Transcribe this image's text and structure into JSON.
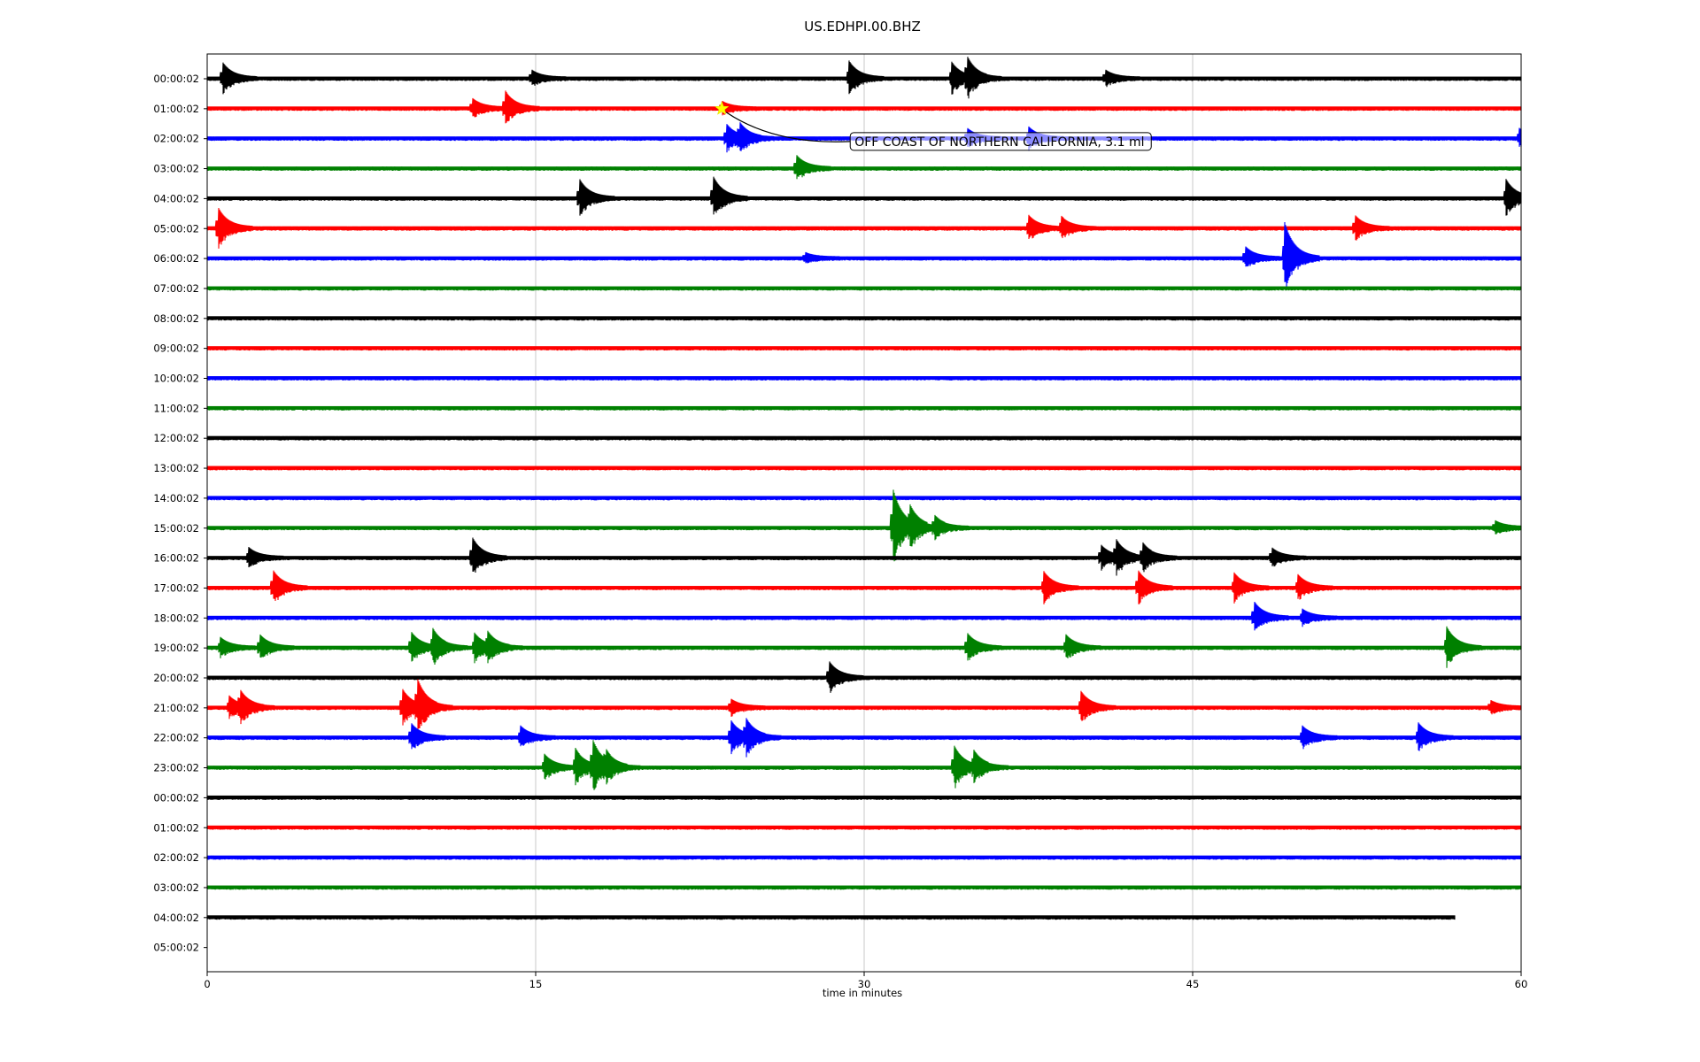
{
  "chart_data": {
    "type": "line",
    "title": "US.EDHPI.00.BHZ",
    "xlabel": "time in minutes",
    "ylabel": "",
    "xlim": [
      0,
      60
    ],
    "x_ticks": [
      0,
      15,
      30,
      45,
      60
    ],
    "x_tick_labels": [
      "0",
      "15",
      "30",
      "45",
      "60"
    ],
    "grid": "vertical",
    "row_labels": [
      "00:00:02",
      "01:00:02",
      "02:00:02",
      "03:00:02",
      "04:00:02",
      "05:00:02",
      "06:00:02",
      "07:00:02",
      "08:00:02",
      "09:00:02",
      "10:00:02",
      "11:00:02",
      "12:00:02",
      "13:00:02",
      "14:00:02",
      "15:00:02",
      "16:00:02",
      "17:00:02",
      "18:00:02",
      "19:00:02",
      "20:00:02",
      "21:00:02",
      "22:00:02",
      "23:00:02",
      "00:00:02",
      "01:00:02",
      "02:00:02",
      "03:00:02",
      "04:00:02",
      "05:00:02"
    ],
    "color_cycle": [
      "#000000",
      "#ff0000",
      "#0000ff",
      "#008000"
    ],
    "traces": [
      {
        "row": 0,
        "end_min": 60,
        "bursts": [
          [
            0.7,
            1.0
          ],
          [
            14.8,
            0.5
          ],
          [
            29.3,
            1.1
          ],
          [
            34.0,
            1.0
          ],
          [
            34.7,
            1.2
          ],
          [
            41.0,
            0.5
          ]
        ]
      },
      {
        "row": 1,
        "end_min": 60,
        "bursts": [
          [
            12.1,
            0.6
          ],
          [
            13.6,
            1.1
          ],
          [
            23.5,
            0.4
          ]
        ]
      },
      {
        "row": 2,
        "end_min": 60,
        "bursts": [
          [
            23.7,
            0.9
          ],
          [
            24.3,
            0.8
          ],
          [
            34.7,
            0.6
          ],
          [
            37.5,
            0.7
          ],
          [
            59.9,
            0.6
          ]
        ]
      },
      {
        "row": 3,
        "end_min": 60,
        "bursts": [
          [
            26.9,
            0.8
          ]
        ]
      },
      {
        "row": 4,
        "end_min": 60,
        "bursts": [
          [
            17.0,
            1.2
          ],
          [
            23.1,
            1.4
          ],
          [
            59.3,
            1.2
          ]
        ]
      },
      {
        "row": 5,
        "end_min": 60,
        "bursts": [
          [
            0.5,
            1.3
          ],
          [
            37.5,
            0.8
          ],
          [
            39.0,
            0.7
          ],
          [
            52.4,
            0.8
          ]
        ]
      },
      {
        "row": 6,
        "end_min": 60,
        "bursts": [
          [
            47.4,
            0.7
          ],
          [
            49.2,
            2.3
          ],
          [
            27.3,
            0.3
          ]
        ]
      },
      {
        "row": 7,
        "end_min": 60,
        "bursts": []
      },
      {
        "row": 8,
        "end_min": 60,
        "bursts": []
      },
      {
        "row": 9,
        "end_min": 60,
        "bursts": []
      },
      {
        "row": 10,
        "end_min": 60,
        "bursts": []
      },
      {
        "row": 11,
        "end_min": 60,
        "bursts": []
      },
      {
        "row": 12,
        "end_min": 60,
        "bursts": []
      },
      {
        "row": 13,
        "end_min": 60,
        "bursts": []
      },
      {
        "row": 14,
        "end_min": 60,
        "bursts": []
      },
      {
        "row": 15,
        "end_min": 60,
        "bursts": [
          [
            31.3,
            2.6
          ],
          [
            32.1,
            1.0
          ],
          [
            33.2,
            0.7
          ],
          [
            58.8,
            0.4
          ]
        ]
      },
      {
        "row": 16,
        "end_min": 60,
        "bursts": [
          [
            1.9,
            0.6
          ],
          [
            12.1,
            1.3
          ],
          [
            40.8,
            0.8
          ],
          [
            41.5,
            1.0
          ],
          [
            42.7,
            0.9
          ],
          [
            48.6,
            0.6
          ]
        ]
      },
      {
        "row": 17,
        "end_min": 60,
        "bursts": [
          [
            3.0,
            1.1
          ],
          [
            38.2,
            1.0
          ],
          [
            42.5,
            1.1
          ],
          [
            46.9,
            0.9
          ],
          [
            49.8,
            0.8
          ]
        ]
      },
      {
        "row": 18,
        "end_min": 60,
        "bursts": [
          [
            47.8,
            1.0
          ],
          [
            50.0,
            0.5
          ]
        ]
      },
      {
        "row": 19,
        "end_min": 60,
        "bursts": [
          [
            0.6,
            0.6
          ],
          [
            2.4,
            0.8
          ],
          [
            9.3,
            1.0
          ],
          [
            10.3,
            1.1
          ],
          [
            12.2,
            0.9
          ],
          [
            12.8,
            0.8
          ],
          [
            34.7,
            0.9
          ],
          [
            39.2,
            0.8
          ],
          [
            56.6,
            1.3
          ]
        ]
      },
      {
        "row": 20,
        "end_min": 60,
        "bursts": [
          [
            28.4,
            1.0
          ]
        ]
      },
      {
        "row": 21,
        "end_min": 60,
        "bursts": [
          [
            1.0,
            0.7
          ],
          [
            1.5,
            0.9
          ],
          [
            8.9,
            1.2
          ],
          [
            9.6,
            1.6
          ],
          [
            23.9,
            0.5
          ],
          [
            39.9,
            1.0
          ],
          [
            58.6,
            0.4
          ]
        ]
      },
      {
        "row": 22,
        "end_min": 60,
        "bursts": [
          [
            9.3,
            0.9
          ],
          [
            14.3,
            0.7
          ],
          [
            23.9,
            1.1
          ],
          [
            24.6,
            1.0
          ],
          [
            50.0,
            0.7
          ],
          [
            55.3,
            0.9
          ]
        ]
      },
      {
        "row": 23,
        "end_min": 60,
        "bursts": [
          [
            15.4,
            0.8
          ],
          [
            16.8,
            1.2
          ],
          [
            17.6,
            1.6
          ],
          [
            18.2,
            0.7
          ],
          [
            34.1,
            1.4
          ],
          [
            35.0,
            0.9
          ]
        ]
      },
      {
        "row": 24,
        "end_min": 60,
        "bursts": []
      },
      {
        "row": 25,
        "end_min": 60,
        "bursts": []
      },
      {
        "row": 26,
        "end_min": 60,
        "bursts": []
      },
      {
        "row": 27,
        "end_min": 60,
        "bursts": []
      },
      {
        "row": 28,
        "end_min": 57.0,
        "bursts": []
      }
    ],
    "annotations": [
      {
        "text": "OFF COAST OF NORTHERN CALIFORNIA, 3.1 ml",
        "row": 1,
        "x_min": 23.5,
        "marker": "star",
        "marker_color": "#ffff00"
      }
    ]
  }
}
